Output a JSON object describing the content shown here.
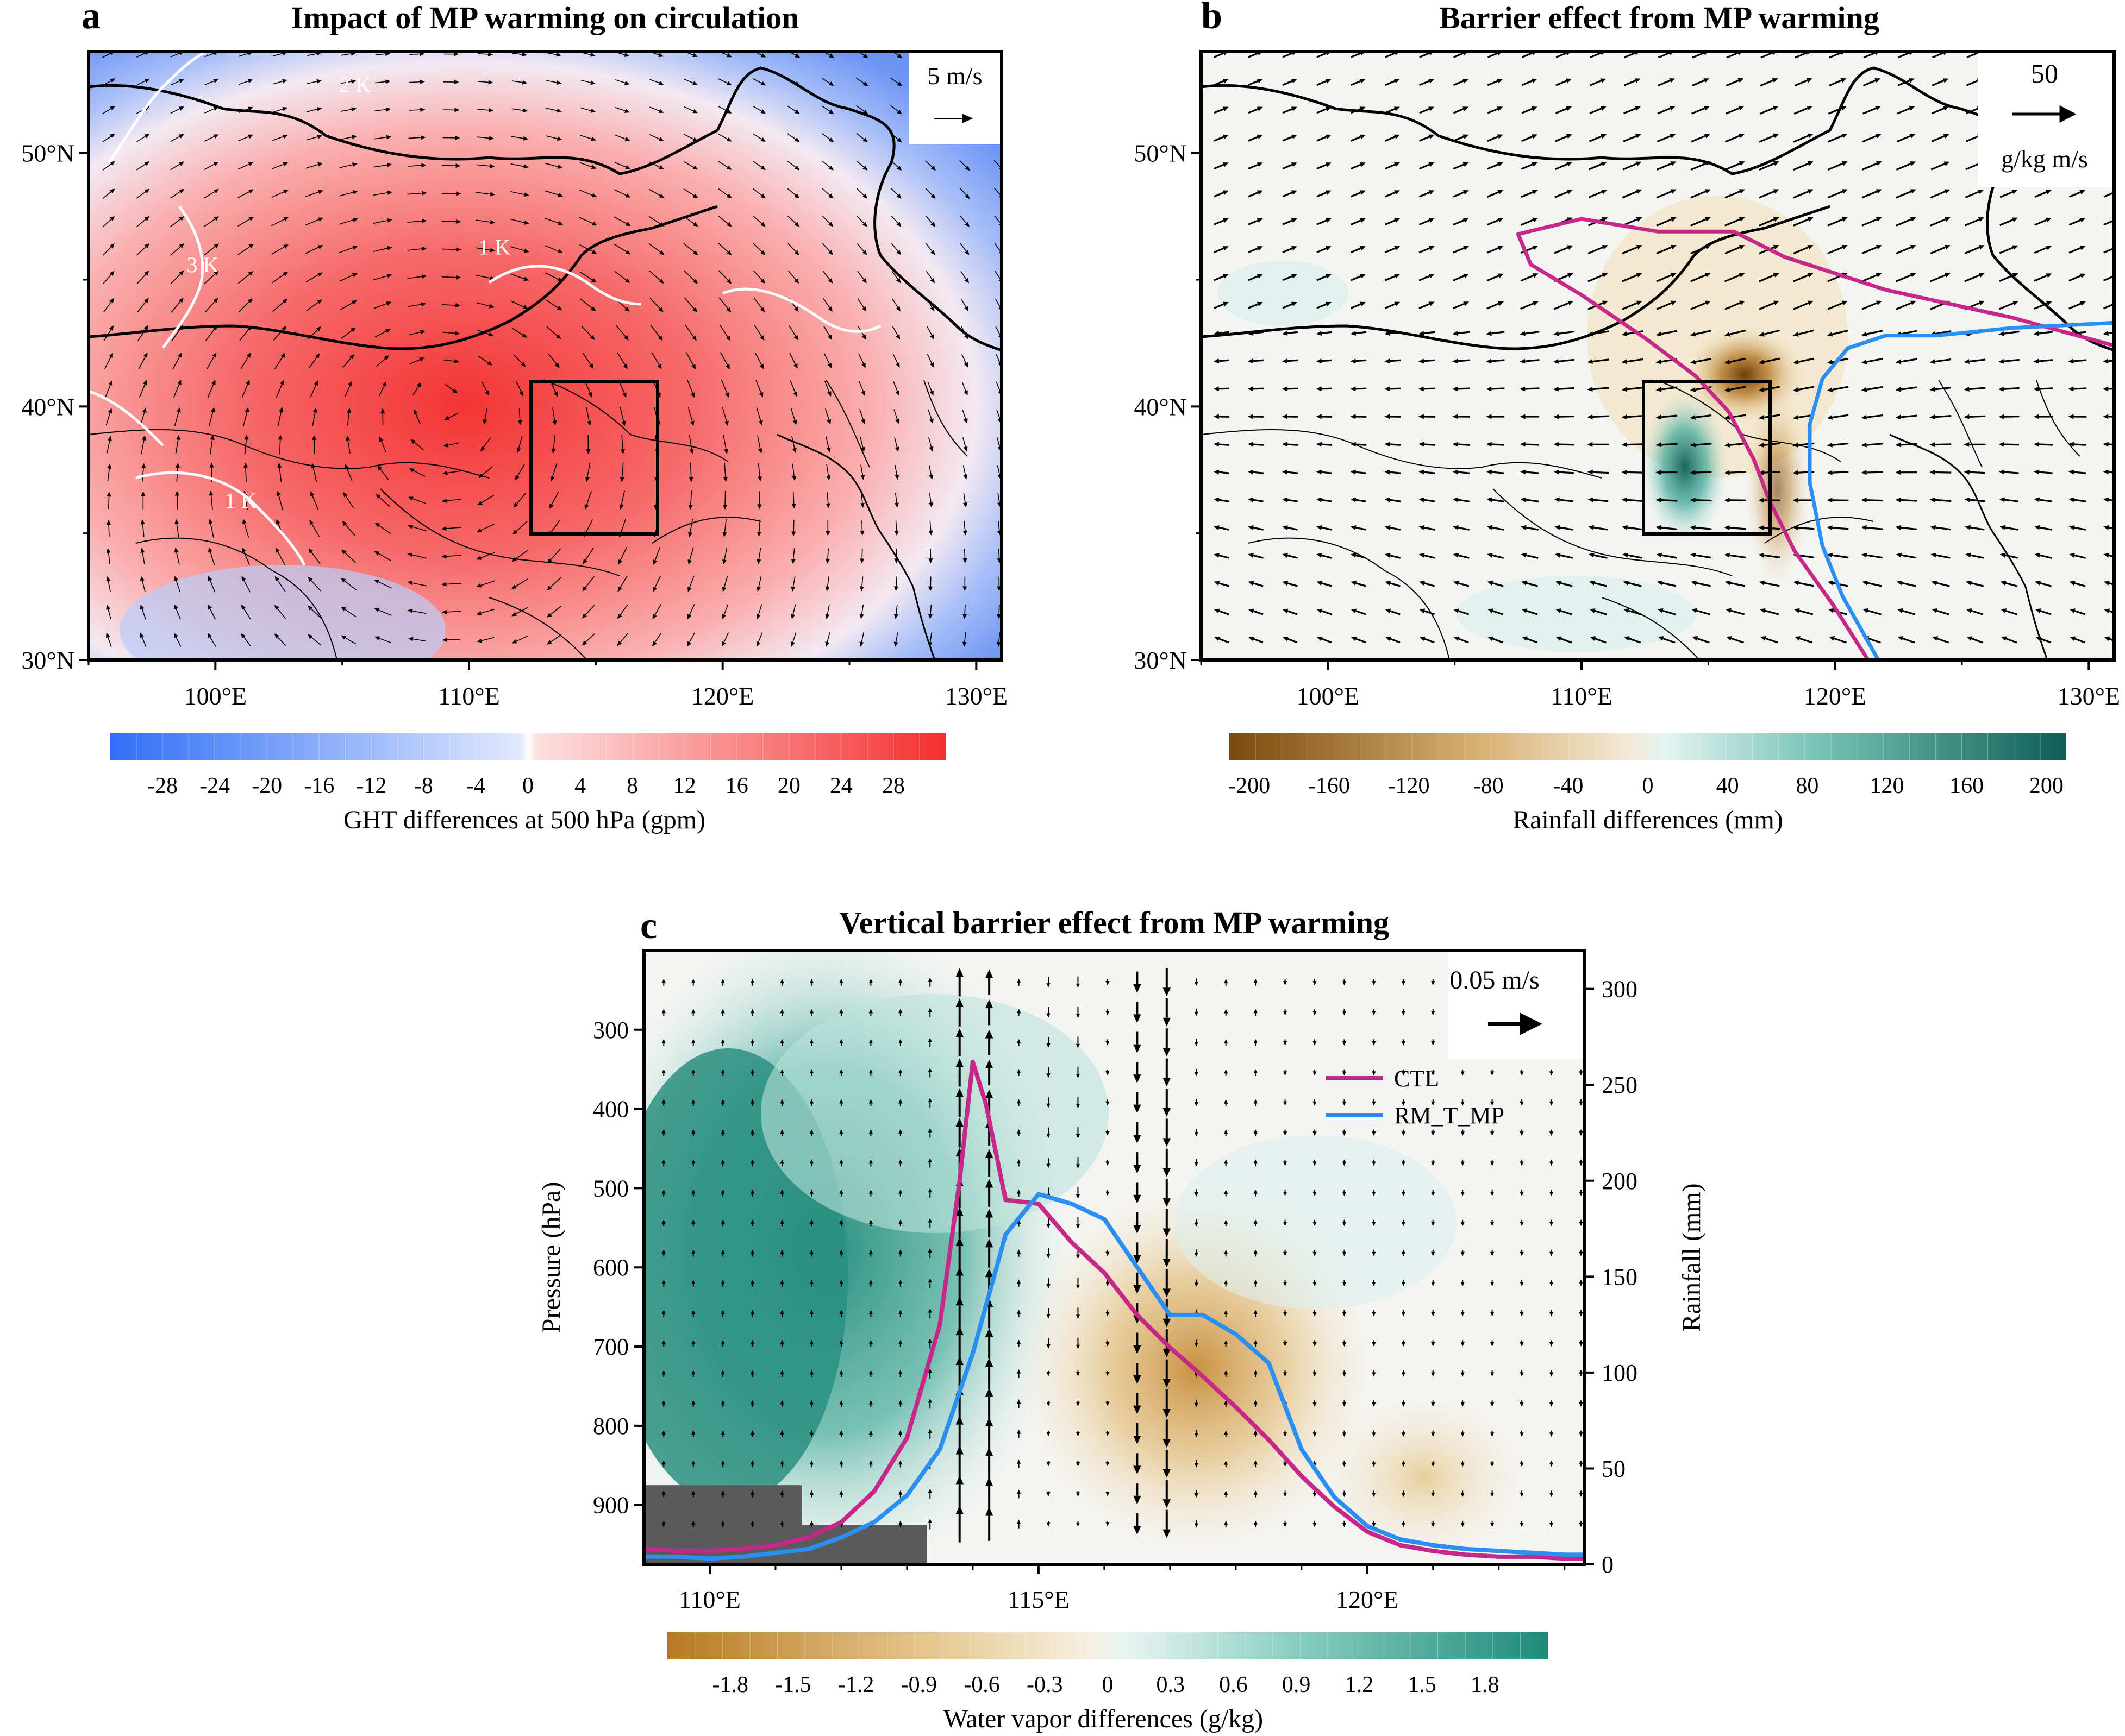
{
  "chart_data": [
    {
      "id": "a",
      "type": "map",
      "panel_letter": "a",
      "title": "Impact of MP warming on circulation",
      "x_range": [
        95,
        131
      ],
      "y_range": [
        30,
        54
      ],
      "x_ticks": [
        {
          "value": 100,
          "label": "100°E"
        },
        {
          "value": 110,
          "label": "110°E"
        },
        {
          "value": 120,
          "label": "120°E"
        },
        {
          "value": 130,
          "label": "130°E"
        }
      ],
      "y_ticks": [
        {
          "value": 30,
          "label": "30°N"
        },
        {
          "value": 40,
          "label": "40°N"
        },
        {
          "value": 50,
          "label": "50°N"
        }
      ],
      "study_box": {
        "lon": [
          112.5,
          117.5
        ],
        "lat": [
          35,
          41
        ]
      },
      "reference_vector": {
        "label": "5 m/s"
      },
      "contour_labels": [
        {
          "text": "2 K",
          "lon": 105.5,
          "lat": 52.4
        },
        {
          "text": "3 K",
          "lon": 99.5,
          "lat": 45.3
        },
        {
          "text": "1 K",
          "lon": 111.0,
          "lat": 46.0
        },
        {
          "text": "1 K",
          "lon": 101.0,
          "lat": 36.0
        }
      ],
      "field": {
        "variable": "GHT differences at 500 hPa",
        "center_lon": 109,
        "center_lat": 40.5,
        "peak": 30
      },
      "colorbar": {
        "label": "GHT differences at 500 hPa (gpm)",
        "ticks": [
          "-28",
          "-24",
          "-20",
          "-16",
          "-12",
          "-8",
          "-4",
          "0",
          "4",
          "8",
          "12",
          "16",
          "20",
          "24",
          "28"
        ],
        "range": [
          -32,
          32
        ],
        "colors": {
          "negative": "#2f6ef6",
          "zero": "#ffffff",
          "positive": "#f52f2f"
        }
      }
    },
    {
      "id": "b",
      "type": "map",
      "panel_letter": "b",
      "title": "Barrier effect from MP warming",
      "x_range": [
        95,
        131
      ],
      "y_range": [
        30,
        54
      ],
      "x_ticks": [
        {
          "value": 100,
          "label": "100°E"
        },
        {
          "value": 110,
          "label": "110°E"
        },
        {
          "value": 120,
          "label": "120°E"
        },
        {
          "value": 130,
          "label": "130°E"
        }
      ],
      "y_ticks": [
        {
          "value": 30,
          "label": "30°N"
        },
        {
          "value": 40,
          "label": "40°N"
        },
        {
          "value": 50,
          "label": "50°N"
        }
      ],
      "study_box": {
        "lon": [
          112.5,
          117.5
        ],
        "lat": [
          35,
          41
        ]
      },
      "reference_vector": {
        "label_top": "50",
        "label_bottom": "g/kg m/s"
      },
      "contours": [
        {
          "name": "CTL",
          "color": "#c8278a",
          "points": [
            [
              131,
              42.4
            ],
            [
              127,
              43.5
            ],
            [
              122,
              44.6
            ],
            [
              118,
              45.9
            ],
            [
              116,
              46.9
            ],
            [
              113,
              46.9
            ],
            [
              110,
              47.4
            ],
            [
              107.5,
              46.8
            ],
            [
              108,
              45.6
            ],
            [
              110,
              44.4
            ],
            [
              112.5,
              42.7
            ],
            [
              114.5,
              41.2
            ],
            [
              115.8,
              39.8
            ],
            [
              116.8,
              37.9
            ],
            [
              117.4,
              36.3
            ],
            [
              118.4,
              34.3
            ],
            [
              119.9,
              32.2
            ],
            [
              121.3,
              30
            ]
          ]
        },
        {
          "name": "RM_T_MP",
          "color": "#2a8ff0",
          "points": [
            [
              131,
              43.3
            ],
            [
              127,
              43.1
            ],
            [
              124,
              42.8
            ],
            [
              122,
              42.8
            ],
            [
              120.5,
              42.3
            ],
            [
              119.5,
              41.1
            ],
            [
              119.0,
              39.3
            ],
            [
              119.0,
              37.0
            ],
            [
              119.5,
              34.5
            ],
            [
              120.3,
              32.5
            ],
            [
              121.7,
              30
            ]
          ]
        }
      ],
      "field": {
        "variable": "Rainfall differences",
        "positive_region": {
          "lon": [
            113,
            115.5
          ],
          "lat": [
            35.6,
            40.5
          ]
        },
        "negative_center": {
          "lon": 116.5,
          "lat": 41
        }
      },
      "colorbar": {
        "label": "Rainfall differences (mm)",
        "ticks": [
          "-200",
          "-160",
          "-120",
          "-80",
          "-40",
          "0",
          "40",
          "80",
          "120",
          "160",
          "200"
        ],
        "range": [
          -210,
          210
        ],
        "colors": {
          "negative": "#7a4a0a",
          "zero": "#f4f4f4",
          "positive": "#0f5e56"
        }
      }
    },
    {
      "id": "c",
      "type": "line",
      "panel_letter": "c",
      "title": "Vertical barrier effect from MP warming",
      "xlabel": "",
      "ylabel_left": "Pressure (hPa)",
      "ylabel_right": "Rainfall (mm)",
      "x_range": [
        109,
        123.3
      ],
      "pressure_range": [
        200,
        975
      ],
      "rainfall_range": [
        0,
        320
      ],
      "x_ticks": [
        {
          "value": 110,
          "label": "110°E"
        },
        {
          "value": 115,
          "label": "115°E"
        },
        {
          "value": 120,
          "label": "120°E"
        }
      ],
      "left_ticks": [
        300,
        400,
        500,
        600,
        700,
        800,
        900
      ],
      "right_ticks": [
        0,
        50,
        100,
        150,
        200,
        250,
        300
      ],
      "reference_vector": {
        "label": "0.05 m/s"
      },
      "legend": {
        "placement": "upper-right"
      },
      "series": [
        {
          "name": "CTL",
          "color": "#c8278a",
          "x": [
            109,
            109.5,
            110,
            110.5,
            111,
            111.5,
            112,
            112.5,
            113,
            113.5,
            113.8,
            114.0,
            114.2,
            114.5,
            115.0,
            115.5,
            116.0,
            116.5,
            117.0,
            117.5,
            118.0,
            118.5,
            119.0,
            119.5,
            120.0,
            120.5,
            121.0,
            121.5,
            122.0,
            122.5,
            123.0,
            123.3
          ],
          "y": [
            8,
            7,
            7,
            8,
            10,
            14,
            22,
            38,
            66,
            125,
            200,
            262,
            240,
            190,
            188,
            168,
            152,
            130,
            113,
            98,
            82,
            65,
            46,
            30,
            17,
            10,
            7,
            5,
            4,
            4,
            3,
            3
          ]
        },
        {
          "name": "RM_T_MP",
          "color": "#2a8ff0",
          "x": [
            109,
            109.5,
            110,
            110.5,
            111,
            111.5,
            112,
            112.5,
            113,
            113.5,
            114.0,
            114.5,
            115.0,
            115.5,
            116.0,
            116.5,
            117.0,
            117.5,
            118.0,
            118.5,
            119.0,
            119.5,
            120.0,
            120.5,
            121.0,
            121.5,
            122.0,
            122.5,
            123.0,
            123.3
          ],
          "y": [
            4,
            4,
            3,
            4,
            6,
            8,
            14,
            22,
            36,
            60,
            110,
            172,
            193,
            188,
            180,
            155,
            130,
            130,
            120,
            105,
            60,
            35,
            20,
            13,
            10,
            8,
            7,
            6,
            5,
            5
          ]
        }
      ],
      "terrain": [
        {
          "x": [
            109,
            111.4
          ],
          "pressure_top": 875
        },
        {
          "x": [
            111.4,
            113.3
          ],
          "pressure_top": 925
        }
      ],
      "vertical_motion_peaks": [
        {
          "lon": 114.0,
          "direction": "up"
        },
        {
          "lon": 116.8,
          "direction": "down"
        }
      ],
      "colorbar": {
        "label": "Water vapor differences (g/kg)",
        "ticks": [
          "-1.8",
          "-1.5",
          "-1.2",
          "-0.9",
          "-0.6",
          "-0.3",
          "0",
          "0.3",
          "0.6",
          "0.9",
          "1.2",
          "1.5",
          "1.8"
        ],
        "range": [
          -2.1,
          2.1
        ],
        "colors": {
          "negative": "#b77a21",
          "zero": "#f4f4f4",
          "positive": "#1f8a7a"
        }
      }
    }
  ]
}
